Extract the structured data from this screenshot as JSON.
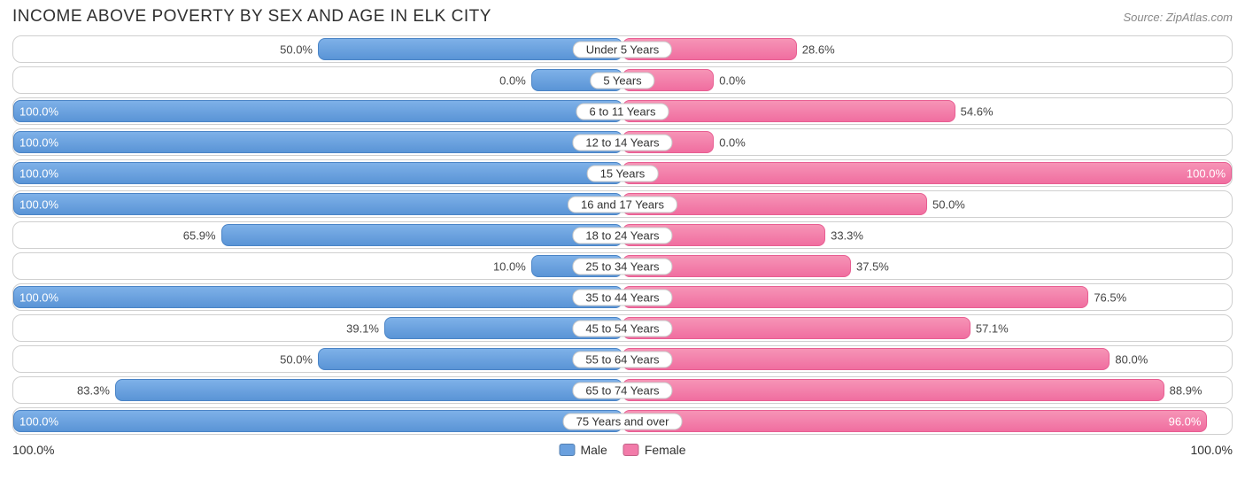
{
  "title": "INCOME ABOVE POVERTY BY SEX AND AGE IN ELK CITY",
  "source": "Source: ZipAtlas.com",
  "colors": {
    "male_fill": "#6aa0de",
    "female_fill": "#f27ba9",
    "row_border": "#cfcfcf",
    "text": "#303030",
    "source_text": "#888888",
    "background": "#ffffff"
  },
  "chart": {
    "type": "diverging-bar",
    "axis_max": 100.0,
    "min_bar_pct": 15,
    "label_inside_threshold_pct": 92,
    "categories": [
      {
        "label": "Under 5 Years",
        "male": 50.0,
        "male_label": "50.0%",
        "female": 28.6,
        "female_label": "28.6%"
      },
      {
        "label": "5 Years",
        "male": 0.0,
        "male_label": "0.0%",
        "female": 0.0,
        "female_label": "0.0%"
      },
      {
        "label": "6 to 11 Years",
        "male": 100.0,
        "male_label": "100.0%",
        "female": 54.6,
        "female_label": "54.6%"
      },
      {
        "label": "12 to 14 Years",
        "male": 100.0,
        "male_label": "100.0%",
        "female": 0.0,
        "female_label": "0.0%"
      },
      {
        "label": "15 Years",
        "male": 100.0,
        "male_label": "100.0%",
        "female": 100.0,
        "female_label": "100.0%"
      },
      {
        "label": "16 and 17 Years",
        "male": 100.0,
        "male_label": "100.0%",
        "female": 50.0,
        "female_label": "50.0%"
      },
      {
        "label": "18 to 24 Years",
        "male": 65.9,
        "male_label": "65.9%",
        "female": 33.3,
        "female_label": "33.3%"
      },
      {
        "label": "25 to 34 Years",
        "male": 10.0,
        "male_label": "10.0%",
        "female": 37.5,
        "female_label": "37.5%"
      },
      {
        "label": "35 to 44 Years",
        "male": 100.0,
        "male_label": "100.0%",
        "female": 76.5,
        "female_label": "76.5%"
      },
      {
        "label": "45 to 54 Years",
        "male": 39.1,
        "male_label": "39.1%",
        "female": 57.1,
        "female_label": "57.1%"
      },
      {
        "label": "55 to 64 Years",
        "male": 50.0,
        "male_label": "50.0%",
        "female": 80.0,
        "female_label": "80.0%"
      },
      {
        "label": "65 to 74 Years",
        "male": 83.3,
        "male_label": "83.3%",
        "female": 88.9,
        "female_label": "88.9%"
      },
      {
        "label": "75 Years and over",
        "male": 100.0,
        "male_label": "100.0%",
        "female": 96.0,
        "female_label": "96.0%"
      }
    ]
  },
  "legend": {
    "male": "Male",
    "female": "Female"
  },
  "axis": {
    "left": "100.0%",
    "right": "100.0%"
  }
}
